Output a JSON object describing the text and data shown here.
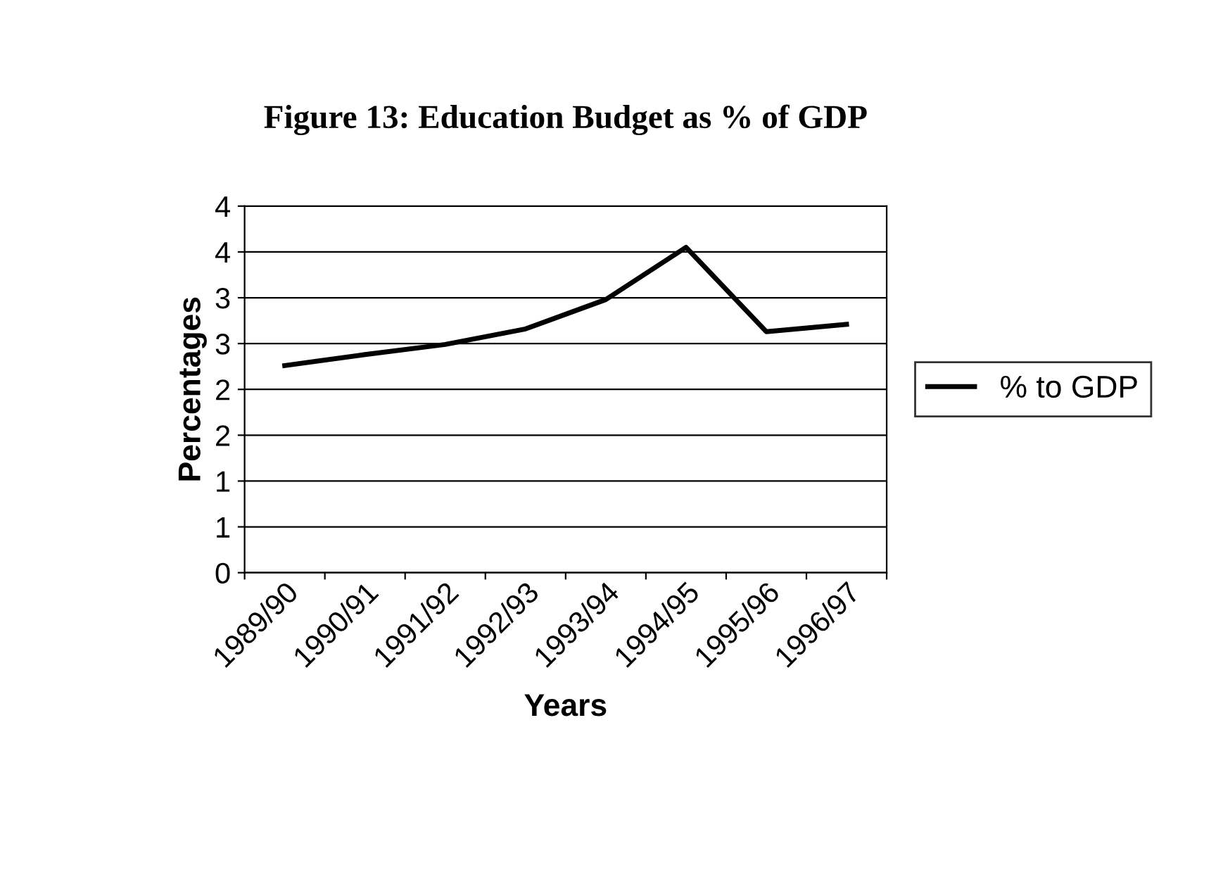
{
  "chart_data": {
    "type": "line",
    "title": "Figure 13: Education Budget as % of GDP",
    "xlabel": "Years",
    "ylabel": "Percentages",
    "categories": [
      "1989/90",
      "1990/91",
      "1991/92",
      "1992/93",
      "1993/94",
      "1994/95",
      "1995/96",
      "1996/97"
    ],
    "series": [
      {
        "name": "% to GDP",
        "color": "#000000",
        "values": [
          2.26,
          2.38,
          2.49,
          2.66,
          2.98,
          3.55,
          2.63,
          2.71
        ]
      }
    ],
    "ylim": [
      0,
      4
    ],
    "yticks": [
      {
        "value": 0,
        "label": "0"
      },
      {
        "value": 0.5,
        "label": "1"
      },
      {
        "value": 1,
        "label": "1"
      },
      {
        "value": 1.5,
        "label": "2"
      },
      {
        "value": 2,
        "label": "2"
      },
      {
        "value": 2.5,
        "label": "3"
      },
      {
        "value": 3,
        "label": "3"
      },
      {
        "value": 3.5,
        "label": "4"
      },
      {
        "value": 4,
        "label": "4"
      }
    ],
    "grid": "y",
    "legend": "right",
    "marker": "none",
    "line_style": "solid"
  }
}
